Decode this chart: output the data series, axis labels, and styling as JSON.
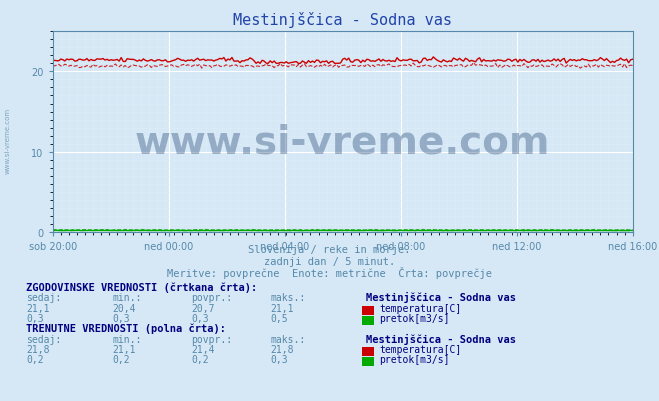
{
  "title": "Mestinjščica - Sodna vas",
  "bg_color": "#d6e8f5",
  "plot_bg_color": "#d6e8f5",
  "axis_color": "#5588aa",
  "title_color": "#2244aa",
  "title_fontsize": 11,
  "xlabel_ticks": [
    "sob 20:00",
    "ned 00:00",
    "ned 04:00",
    "ned 08:00",
    "ned 12:00",
    "ned 16:00"
  ],
  "ylim": [
    0,
    25
  ],
  "xlim": [
    0,
    288
  ],
  "n_points": 289,
  "temp_hist_mean": 20.7,
  "temp_hist_min": 20.4,
  "temp_hist_max": 21.1,
  "temp_curr_mean": 21.4,
  "temp_curr_min": 21.1,
  "temp_curr_max": 21.8,
  "flow_hist_mean": 0.3,
  "flow_curr_mean": 0.2,
  "temp_color": "#cc0000",
  "flow_color": "#00aa00",
  "watermark_text": "www.si-vreme.com",
  "watermark_color": "#1a3a6e",
  "watermark_alpha": 0.35,
  "subtitle1": "Slovenija / reke in morje.",
  "subtitle2": "zadnji dan / 5 minut.",
  "subtitle3": "Meritve: povprečne  Enote: metrične  Črta: povprečje",
  "subtitle_color": "#5588aa",
  "table_header_color": "#000080",
  "table_value_color": "#5588aa",
  "table_label_color": "#000080",
  "left_label": "www.si-vreme.com",
  "left_label_color": "#5588aa",
  "hist_temp_vals": [
    "21,1",
    "20,4",
    "20,7",
    "21,1"
  ],
  "hist_flow_vals": [
    "0,3",
    "0,3",
    "0,3",
    "0,5"
  ],
  "curr_temp_vals": [
    "21,8",
    "21,1",
    "21,4",
    "21,8"
  ],
  "curr_flow_vals": [
    "0,2",
    "0,2",
    "0,2",
    "0,3"
  ],
  "col_labels": [
    "sedaj:",
    "min.:",
    "povpr.:",
    "maks.:"
  ],
  "station_name": "Mestinjščica - Sodna vas"
}
